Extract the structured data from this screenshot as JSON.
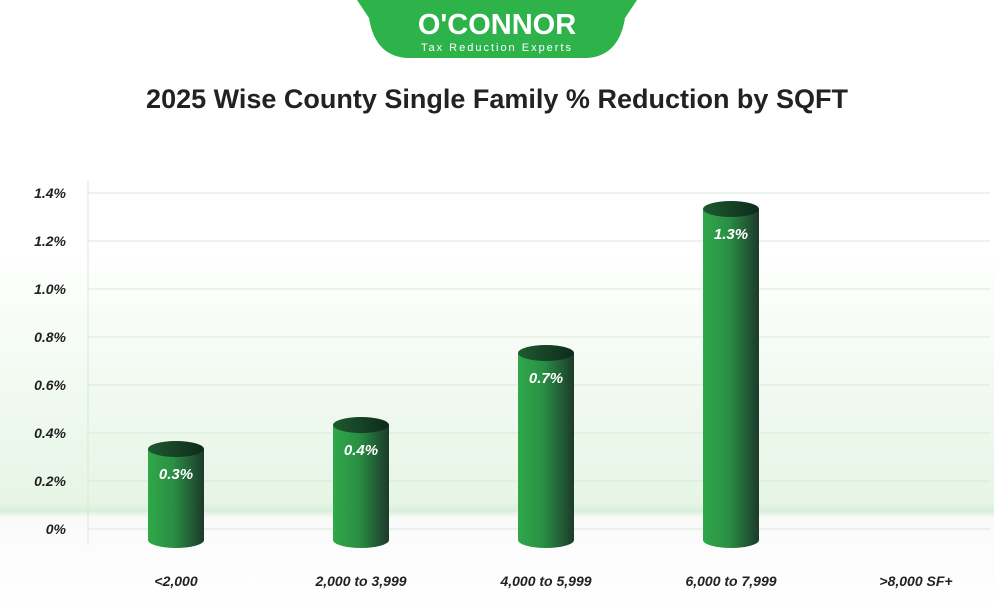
{
  "logo": {
    "brand": "O'CONNOR",
    "tagline": "Tax Reduction Experts"
  },
  "colors": {
    "brand_green": "#2db34a",
    "bar_light": "#2fa84a",
    "bar_dark": "#1c3a2a",
    "grid": "#d6ead6"
  },
  "chart_data": {
    "type": "bar",
    "title": "2025 Wise County Single Family % Reduction by SQFT",
    "categories": [
      "<2,000",
      "2,000 to 3,999",
      "4,000 to 5,999",
      "6,000 to 7,999",
      ">8,000 SF+"
    ],
    "values": [
      0.3,
      0.4,
      0.7,
      1.3,
      null
    ],
    "data_labels": [
      "0.3%",
      "0.4%",
      "0.7%",
      "1.3%",
      ""
    ],
    "yticks": [
      "0%",
      "0.2%",
      "0.4%",
      "0.6%",
      "0.8%",
      "1.0%",
      "1.2%",
      "1.4%"
    ],
    "ylim": [
      0,
      1.4
    ],
    "grid": true,
    "xlabel": "",
    "ylabel": ""
  }
}
